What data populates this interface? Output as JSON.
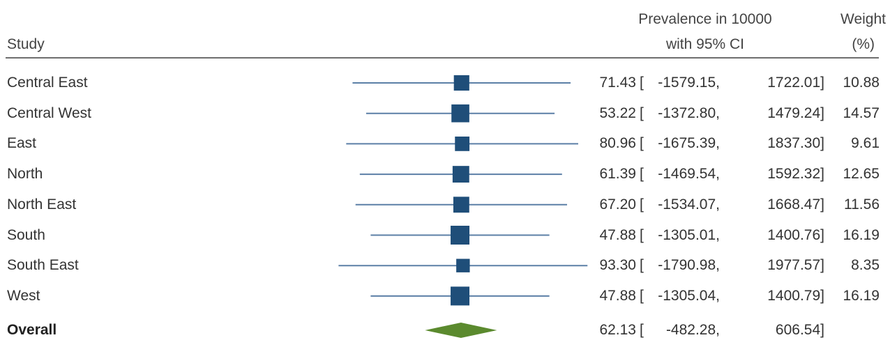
{
  "chart_data": {
    "type": "forest",
    "columns": {
      "study": "Study",
      "effect_line1": "Prevalence in 10000",
      "effect_line2": "with 95% CI",
      "weight_line1": "Weight",
      "weight_line2": "(%)"
    },
    "rows": [
      {
        "study": "Central East",
        "estimate": "71.43",
        "lower": "-1579.15,",
        "upper": "1722.01]",
        "weight": "10.88",
        "est": 71.43,
        "lo": -1579.15,
        "hi": 1722.01,
        "w": 10.88
      },
      {
        "study": "Central West",
        "estimate": "53.22",
        "lower": "-1372.80,",
        "upper": "1479.24]",
        "weight": "14.57",
        "est": 53.22,
        "lo": -1372.8,
        "hi": 1479.24,
        "w": 14.57
      },
      {
        "study": "East",
        "estimate": "80.96",
        "lower": "-1675.39,",
        "upper": "1837.30]",
        "weight": "9.61",
        "est": 80.96,
        "lo": -1675.39,
        "hi": 1837.3,
        "w": 9.61
      },
      {
        "study": "North",
        "estimate": "61.39",
        "lower": "-1469.54,",
        "upper": "1592.32]",
        "weight": "12.65",
        "est": 61.39,
        "lo": -1469.54,
        "hi": 1592.32,
        "w": 12.65
      },
      {
        "study": "North East",
        "estimate": "67.20",
        "lower": "-1534.07,",
        "upper": "1668.47]",
        "weight": "11.56",
        "est": 67.2,
        "lo": -1534.07,
        "hi": 1668.47,
        "w": 11.56
      },
      {
        "study": "South",
        "estimate": "47.88",
        "lower": "-1305.01,",
        "upper": "1400.76]",
        "weight": "16.19",
        "est": 47.88,
        "lo": -1305.01,
        "hi": 1400.76,
        "w": 16.19
      },
      {
        "study": "South East",
        "estimate": "93.30",
        "lower": "-1790.98,",
        "upper": "1977.57]",
        "weight": "8.35",
        "est": 93.3,
        "lo": -1790.98,
        "hi": 1977.57,
        "w": 8.35
      },
      {
        "study": "West",
        "estimate": "47.88",
        "lower": "-1305.04,",
        "upper": "1400.79]",
        "weight": "16.19",
        "est": 47.88,
        "lo": -1305.04,
        "hi": 1400.79,
        "w": 16.19
      }
    ],
    "overall": {
      "study": "Overall",
      "estimate": "62.13",
      "lower": "-482.28,",
      "upper": "606.54]",
      "est": 62.13,
      "lo": -482.28,
      "hi": 606.54
    },
    "bracket_open": "[",
    "colors": {
      "ci_line": "#5b7fa6",
      "marker": "#1f4e79",
      "diamond": "#5b8a2e",
      "rule": "#6e6e6e"
    }
  }
}
